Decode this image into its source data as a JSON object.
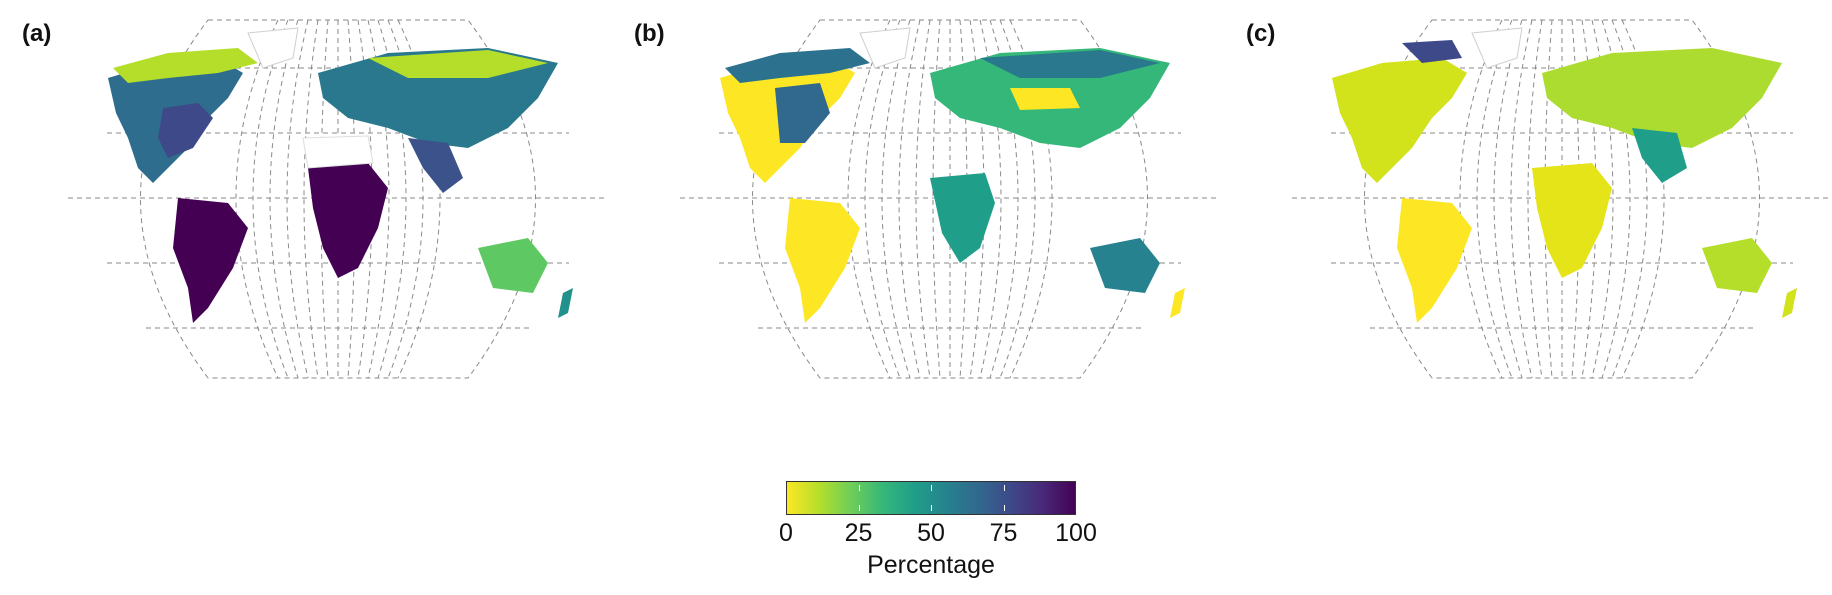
{
  "panels": [
    {
      "label": "(a)"
    },
    {
      "label": "(b)"
    },
    {
      "label": "(c)"
    }
  ],
  "legend": {
    "title": "Percentage",
    "ticks": [
      "0",
      "25",
      "50",
      "75",
      "100"
    ],
    "tick_values": [
      0,
      25,
      50,
      75,
      100
    ],
    "range": [
      0,
      100
    ],
    "colormap": [
      "#fde725",
      "#b5de2b",
      "#6ece58",
      "#35b779",
      "#1f9e89",
      "#26828e",
      "#31688e",
      "#3e4989",
      "#482878",
      "#440154"
    ]
  },
  "colors": {
    "graticule": "#8a8a8a",
    "low": "#fde725",
    "mid": "#21918c",
    "high": "#440154"
  }
}
